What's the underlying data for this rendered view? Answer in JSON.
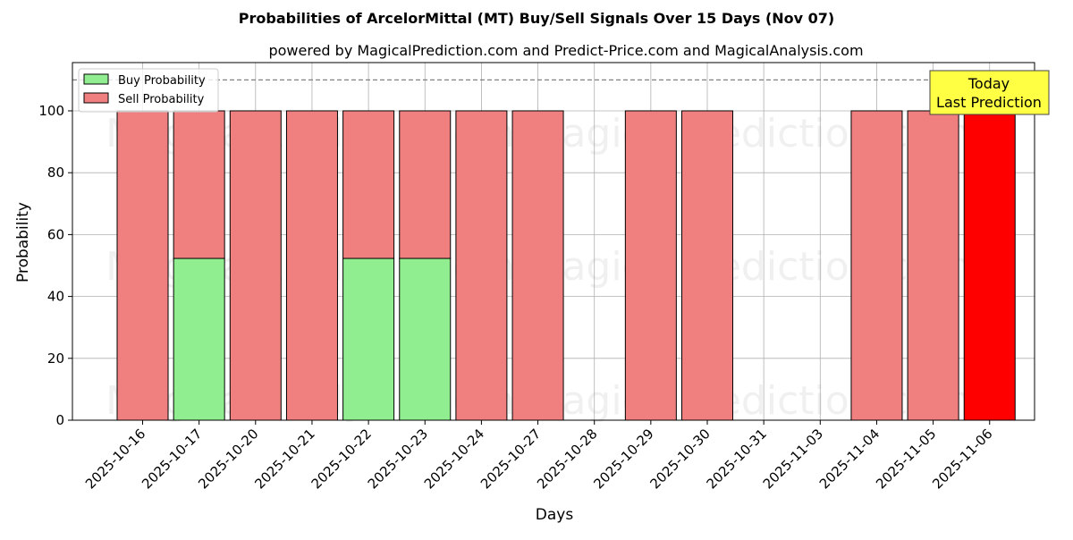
{
  "chart_data": {
    "type": "bar",
    "stacked": true,
    "title": "Probabilities of ArcelorMittal (MT) Buy/Sell Signals Over 15 Days (Nov 07)",
    "subtitle": "powered by MagicalPrediction.com and Predict-Price.com and MagicalAnalysis.com",
    "xlabel": "Days",
    "ylabel": "Probability",
    "ylim": [
      0,
      115.6
    ],
    "yticks": [
      0,
      20,
      40,
      60,
      80,
      100
    ],
    "grid": true,
    "legend_position": "upper left",
    "categories": [
      "2025-10-16",
      "2025-10-17",
      "2025-10-20",
      "2025-10-21",
      "2025-10-22",
      "2025-10-23",
      "2025-10-24",
      "2025-10-27",
      "2025-10-28",
      "2025-10-29",
      "2025-10-30",
      "2025-10-31",
      "2025-11-03",
      "2025-11-04",
      "2025-11-05",
      "2025-11-06"
    ],
    "series": [
      {
        "name": "Buy Probability",
        "color": "#90ee90",
        "values": [
          0,
          52.3,
          0,
          0,
          52.3,
          52.3,
          0,
          0,
          null,
          0,
          0,
          null,
          null,
          0,
          0,
          0
        ]
      },
      {
        "name": "Sell Probability",
        "color": "#f08080",
        "values": [
          100,
          47.7,
          100,
          100,
          47.7,
          47.7,
          100,
          100,
          null,
          100,
          100,
          null,
          null,
          100,
          100,
          100
        ]
      }
    ],
    "highlight": {
      "index": 15,
      "color": "#ff0000"
    },
    "reference_line": {
      "y": 110,
      "style": "dashed",
      "color": "#808080"
    },
    "annotation": {
      "line1": "Today",
      "line2": "Last Prediction",
      "background": "#ffff44"
    },
    "watermarks": [
      "MagicalAnalysis.com",
      "MagicalPrediction.com"
    ]
  }
}
